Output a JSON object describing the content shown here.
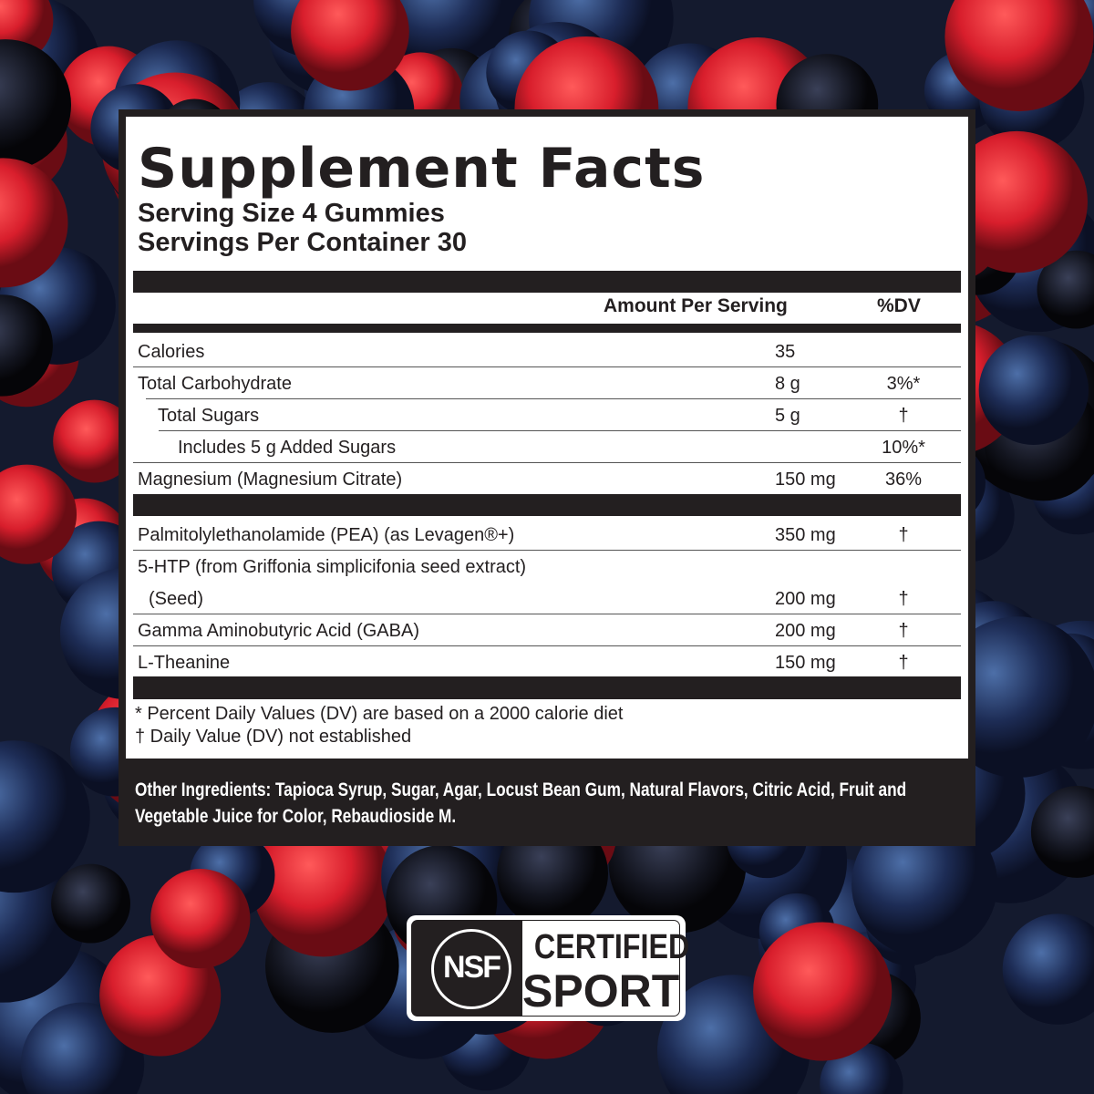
{
  "label": {
    "title": "Supplement Facts",
    "serving_size": "Serving Size 4 Gummies",
    "servings_per_container": "Servings Per Container 30",
    "header_amount": "Amount Per Serving",
    "header_dv": "%DV",
    "rows_top": [
      {
        "name": "Calories",
        "amount": "35",
        "dv": ""
      },
      {
        "name": "Total Carbohydrate",
        "amount": "8 g",
        "dv": "3%*"
      },
      {
        "name": "Total Sugars",
        "amount": "5 g",
        "dv": "†"
      },
      {
        "name": "Includes 5 g Added Sugars",
        "amount": "",
        "dv": "10%*"
      },
      {
        "name": "Magnesium (Magnesium Citrate)",
        "amount": "150 mg",
        "dv": "36%"
      }
    ],
    "rows_bottom": [
      {
        "name": "Palmitolylethanolamide (PEA) (as Levagen®+)",
        "amount": "350 mg",
        "dv": "†"
      },
      {
        "name": "5-HTP (from Griffonia simplicifonia seed extract)",
        "amount": "",
        "dv": ""
      },
      {
        "name": "(Seed)",
        "amount": "200 mg",
        "dv": "†"
      },
      {
        "name": "Gamma Aminobutyric Acid (GABA)",
        "amount": "200 mg",
        "dv": "†"
      },
      {
        "name": "L-Theanine",
        "amount": "150 mg",
        "dv": "†"
      }
    ],
    "footnote_1": "* Percent Daily Values (DV) are based on a 2000 calorie diet",
    "footnote_2": "† Daily Value (DV) not established",
    "other_ingredients": "Other Ingredients: Tapioca Syrup, Sugar, Agar, Locust Bean Gum, Natural Flavors, Citric Acid, Fruit and Vegetable Juice for Color, Rebaudioside M."
  },
  "badge": {
    "logo": "NSF",
    "line1": "CERTIFIED",
    "line2": "SPORT"
  },
  "colors": {
    "label_dark": "#231f20",
    "label_bg": "#ffffff"
  }
}
